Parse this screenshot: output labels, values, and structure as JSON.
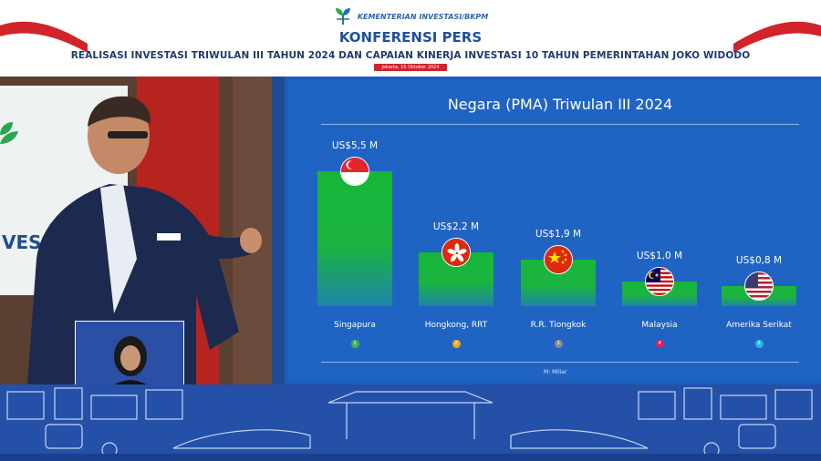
{
  "header": {
    "ministry_name": "KEMENTERIAN INVESTASI/BKPM",
    "title": "KONFERENSI PERS",
    "subtitle": "REALISASI INVESTASI TRIWULAN III TAHUN 2024 DAN CAPAIAN KINERJA INVESTASI 10 TAHUN PEMERINTAHAN JOKO WIDODO",
    "date": "Jakarta, 15 Oktober 2024"
  },
  "background_screen": {
    "text": "VES"
  },
  "slide": {
    "title": "Negara (PMA) Triwulan III 2024",
    "footnote": "M: Miliar"
  },
  "colors": {
    "brand_blue": "#1f4fa0",
    "slide_bg": "#2064c3",
    "bar_green": "#17b63a",
    "date_red": "#d1232a"
  },
  "chart_data": {
    "type": "bar",
    "title": "Negara (PMA) Triwulan III 2024",
    "categories": [
      "Singapura",
      "Hongkong, RRT",
      "R.R. Tiongkok",
      "Malaysia",
      "Amerika Serikat"
    ],
    "values": [
      5.5,
      2.2,
      1.9,
      1.0,
      0.8
    ],
    "value_labels": [
      "US$5,5 M",
      "US$2,2 M",
      "US$1,9 M",
      "US$1,0 M",
      "US$0,8 M"
    ],
    "ranks": [
      "1",
      "2",
      "3",
      "4",
      "5"
    ],
    "rank_colors": [
      "#3cb54a",
      "#f2a71b",
      "#8c8c8c",
      "#e0205e",
      "#29b6e8"
    ],
    "flags": [
      "singapore-flag",
      "hong-kong-flag",
      "china-flag",
      "malaysia-flag",
      "usa-flag"
    ],
    "unit_note": "M: Miliar",
    "ylim": [
      0,
      5.5
    ]
  }
}
